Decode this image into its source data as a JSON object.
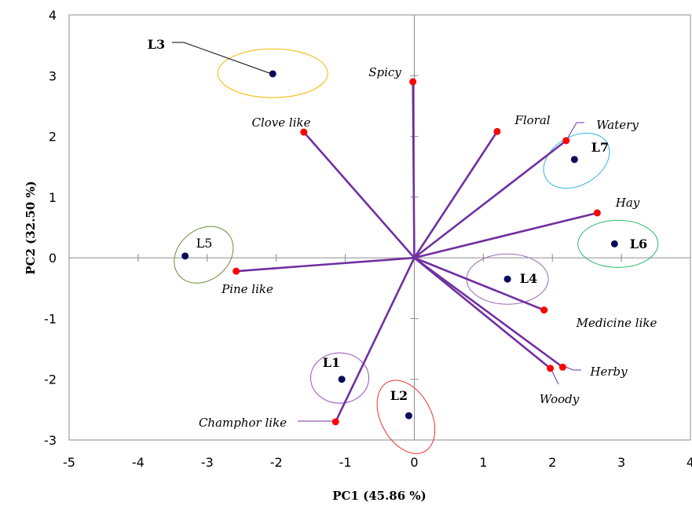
{
  "chart_data": {
    "type": "scatter",
    "subtype": "pca-biplot",
    "xlabel": "PC1 (45.86 %)",
    "ylabel": "PC2 (32.50 %)",
    "xlim": [
      -5,
      4
    ],
    "ylim": [
      -3,
      4
    ],
    "xticks": [
      -5,
      -4,
      -3,
      -2,
      -1,
      0,
      1,
      2,
      3,
      4
    ],
    "yticks": [
      -3,
      -2,
      -1,
      0,
      1,
      2,
      3,
      4
    ],
    "grid": false,
    "colors": {
      "loading_line": "#7030a0",
      "loading_point": "#ff0000",
      "sample_point": "#0a0a5a"
    },
    "loadings": [
      {
        "label": "Spicy",
        "x": -0.02,
        "y": 2.9
      },
      {
        "label": "Floral",
        "x": 1.2,
        "y": 2.08
      },
      {
        "label": "Watery",
        "x": 2.2,
        "y": 1.93
      },
      {
        "label": "Hay",
        "x": 2.65,
        "y": 0.74
      },
      {
        "label": "Clove like",
        "x": -1.6,
        "y": 2.07
      },
      {
        "label": "Pine like",
        "x": -2.58,
        "y": -0.22
      },
      {
        "label": "Medicine like",
        "x": 1.88,
        "y": -0.86
      },
      {
        "label": "Herby",
        "x": 2.15,
        "y": -1.8
      },
      {
        "label": "Woody",
        "x": 1.97,
        "y": -1.82
      },
      {
        "label": "Champhor like",
        "x": -1.14,
        "y": -2.7
      }
    ],
    "samples": [
      {
        "label": "L3",
        "x": -2.05,
        "y": 3.03,
        "ellipse_color": "#f2b800"
      },
      {
        "label": "L5",
        "x": -3.32,
        "y": 0.03,
        "ellipse_color": "#6b8e3a"
      },
      {
        "label": "L7",
        "x": 2.32,
        "y": 1.62,
        "ellipse_color": "#33b5e5"
      },
      {
        "label": "L6",
        "x": 2.9,
        "y": 0.23,
        "ellipse_color": "#2ebc6b"
      },
      {
        "label": "L4",
        "x": 1.35,
        "y": -0.35,
        "ellipse_color": "#9a66b5"
      },
      {
        "label": "L1",
        "x": -1.05,
        "y": -2.0,
        "ellipse_color": "#9a4fbf"
      },
      {
        "label": "L2",
        "x": -0.08,
        "y": -2.6,
        "ellipse_color": "#f03030"
      }
    ]
  }
}
